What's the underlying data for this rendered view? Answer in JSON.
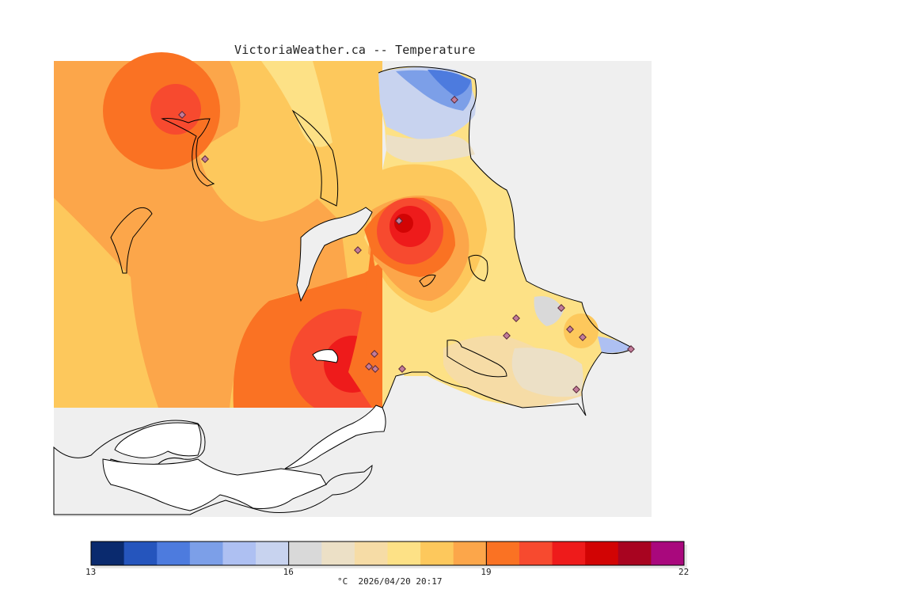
{
  "title": "VictoriaWeather.ca -- Temperature",
  "caption": "°C  2026/04/20 20:17",
  "colorbar": {
    "min": 13,
    "max": 22,
    "tick_labels": [
      "13",
      "16",
      "19",
      "22"
    ],
    "tick_values": [
      13,
      16,
      19,
      22
    ],
    "colors": [
      "#0a2a6e",
      "#2555bd",
      "#4d7bde",
      "#7c9fe8",
      "#aec0f2",
      "#c8d3ef",
      "#d9d9d9",
      "#ece0c6",
      "#f6dca6",
      "#fde186",
      "#fdc85c",
      "#fca64a",
      "#fa7223",
      "#f74a2f",
      "#ee1b1b",
      "#d20404",
      "#a80420",
      "#a9087d"
    ]
  },
  "colors": {
    "background": "#ffffff",
    "no_data": "#efefef",
    "land_outline": "#000000",
    "station_marker": "#c27c9a"
  }
}
